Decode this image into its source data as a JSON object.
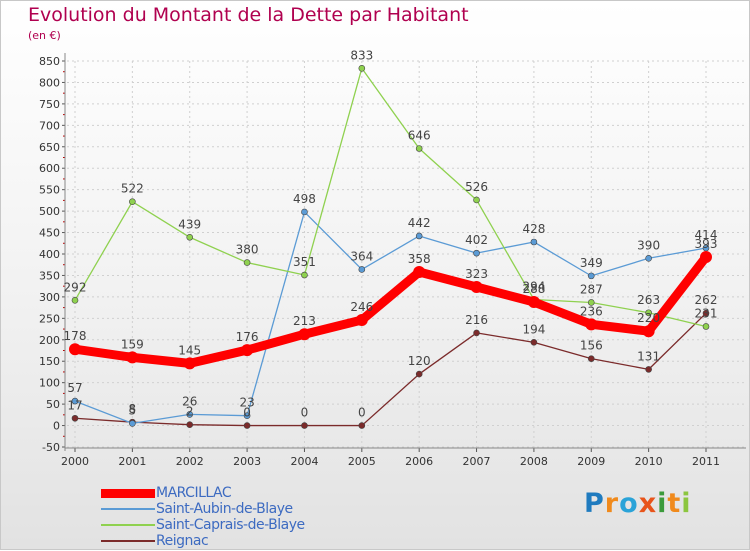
{
  "title": "Evolution du Montant de la Dette par Habitant",
  "subtitle": "(en €)",
  "chart_data": {
    "type": "line",
    "title": "Evolution du Montant de la Dette par Habitant",
    "subtitle": "(en €)",
    "x": [
      "2000",
      "2001",
      "2002",
      "2003",
      "2004",
      "2005",
      "2006",
      "2007",
      "2008",
      "2009",
      "2010",
      "2011"
    ],
    "ylim": [
      -50,
      850
    ],
    "yticks": [
      -50,
      0,
      50,
      100,
      150,
      200,
      250,
      300,
      350,
      400,
      450,
      500,
      550,
      600,
      650,
      700,
      750,
      800,
      850
    ],
    "grid": true,
    "legend_position": "bottom-left",
    "series": [
      {
        "name": "MARCILLAC",
        "color": "#ff0000",
        "values": [
          178,
          159,
          145,
          176,
          213,
          246,
          358,
          323,
          288,
          236,
          220,
          393
        ],
        "labels": [
          "178",
          "159",
          "145",
          "176",
          "213",
          "246",
          "358",
          "323",
          "288",
          "236",
          "220",
          "393"
        ]
      },
      {
        "name": "Saint-Aubin-de-Blaye",
        "color": "#5b9bd5",
        "values": [
          57,
          5,
          26,
          23,
          498,
          364,
          442,
          402,
          428,
          349,
          390,
          414
        ],
        "labels": [
          "57",
          "5",
          "26",
          "23",
          "498",
          "364",
          "442",
          "402",
          "428",
          "349",
          "390",
          "414"
        ]
      },
      {
        "name": "Saint-Caprais-de-Blaye",
        "color": "#8fd14f",
        "values": [
          292,
          522,
          439,
          380,
          351,
          833,
          646,
          526,
          294,
          287,
          263,
          231
        ],
        "labels": [
          "292",
          "522",
          "439",
          "380",
          "351",
          "833",
          "646",
          "526",
          "294",
          "287",
          "263",
          "231"
        ]
      },
      {
        "name": "Reignac",
        "color": "#7b2b2b",
        "values": [
          17,
          8,
          2,
          0,
          0,
          0,
          120,
          216,
          194,
          156,
          131,
          262
        ],
        "labels": [
          "17",
          "8",
          "2",
          "0",
          "0",
          "0",
          "120",
          "216",
          "194",
          "156",
          "131",
          "262"
        ]
      }
    ]
  },
  "legend": [
    {
      "label": "MARCILLAC"
    },
    {
      "label": "Saint-Aubin-de-Blaye"
    },
    {
      "label": "Saint-Caprais-de-Blaye"
    },
    {
      "label": "Reignac"
    }
  ],
  "logo": {
    "letters": [
      "P",
      "r",
      "o",
      "x",
      "i",
      "t",
      "i"
    ],
    "colors": [
      "#1f7bbf",
      "#f08a1c",
      "#2aa3d8",
      "#e8541a",
      "#3c9b3c",
      "#f08a1c",
      "#8cc63f"
    ]
  }
}
